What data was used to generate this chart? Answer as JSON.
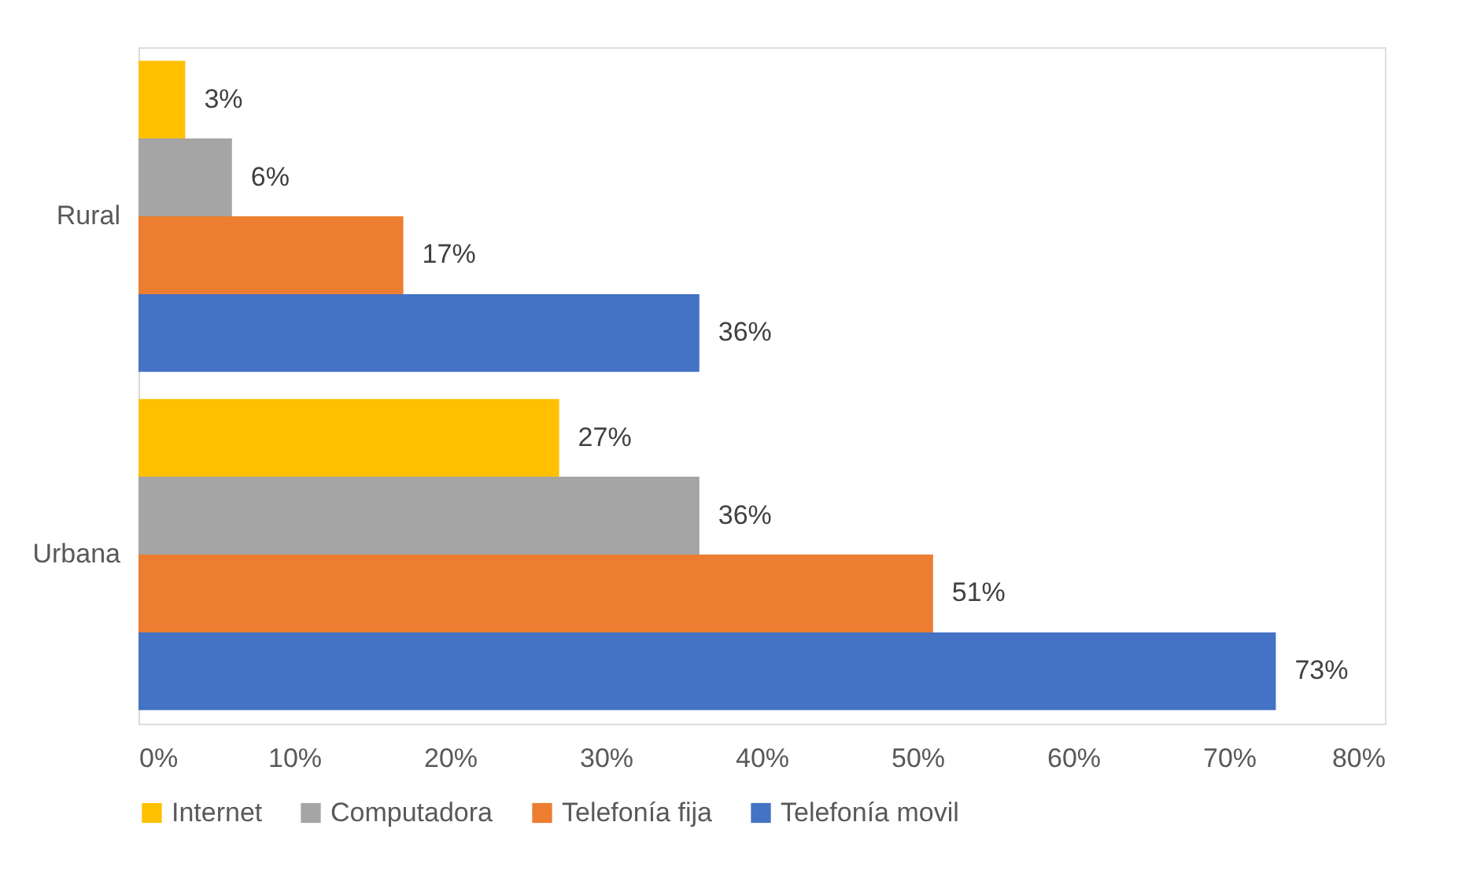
{
  "chart_data": {
    "type": "bar",
    "orientation": "horizontal",
    "categories": [
      "Rural",
      "Urbana"
    ],
    "series": [
      {
        "name": "Internet",
        "color": "#ffc000",
        "values": [
          3,
          27
        ],
        "value_labels": [
          "3%",
          "27%"
        ]
      },
      {
        "name": "Computadora",
        "color": "#a5a5a5",
        "values": [
          6,
          36
        ],
        "value_labels": [
          "6%",
          "36%"
        ]
      },
      {
        "name": "Telefonía fija",
        "color": "#ed7d31",
        "values": [
          17,
          51
        ],
        "value_labels": [
          "17%",
          "51%"
        ]
      },
      {
        "name": "Telefonía movil",
        "color": "#4472c4",
        "values": [
          36,
          73
        ],
        "value_labels": [
          "36%",
          "73%"
        ]
      }
    ],
    "xlim": [
      0,
      80
    ],
    "xticks": [
      {
        "value": 0,
        "label": "0%"
      },
      {
        "value": 10,
        "label": "10%"
      },
      {
        "value": 20,
        "label": "20%"
      },
      {
        "value": 30,
        "label": "30%"
      },
      {
        "value": 40,
        "label": "40%"
      },
      {
        "value": 50,
        "label": "50%"
      },
      {
        "value": 60,
        "label": "60%"
      },
      {
        "value": 70,
        "label": "70%"
      },
      {
        "value": 80,
        "label": "80%"
      }
    ],
    "grid": false,
    "legend": "bottom"
  }
}
